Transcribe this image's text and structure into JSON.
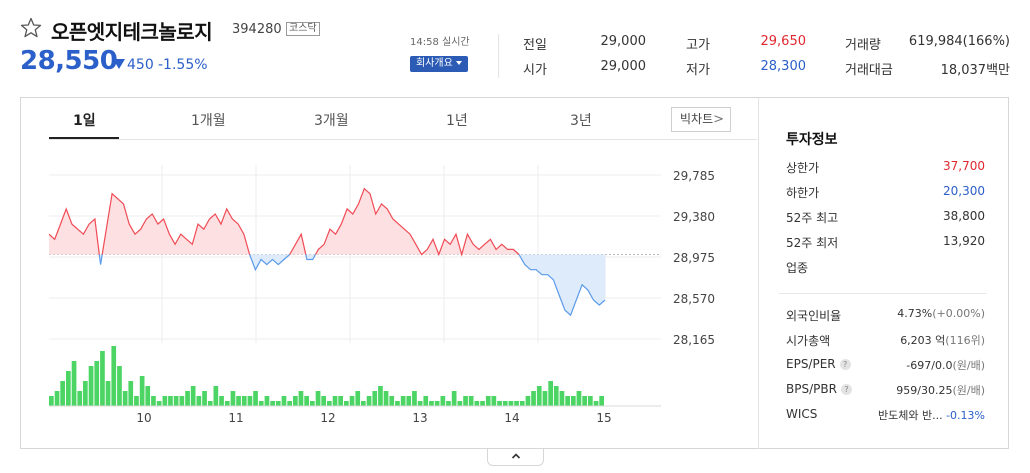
{
  "stock": {
    "name": "오픈엣지테크놀로지",
    "code": "394280",
    "market": "코스닥",
    "price": "28,550",
    "change": "450",
    "change_pct": "-1.55%",
    "time": "14:58 실시간",
    "company_button": "회사개요"
  },
  "quote": [
    {
      "label": "전일",
      "value": "29,000"
    },
    {
      "label": "고가",
      "value": "29,650",
      "color": "#e0272e"
    },
    {
      "label": "거래량",
      "value": "619,984(166%)"
    },
    {
      "label": "시가",
      "value": "29,000"
    },
    {
      "label": "저가",
      "value": "28,300",
      "color": "#2b5fc9"
    },
    {
      "label": "거래대금",
      "value": "18,037백만"
    }
  ],
  "tabs": [
    "1일",
    "1개월",
    "3개월",
    "1년",
    "3년"
  ],
  "active_tab": "1일",
  "bigchart_label": "빅차트",
  "invest": {
    "title": "투자정보",
    "rows": [
      {
        "label": "상한가",
        "value": "37,700",
        "color": "#e0272e"
      },
      {
        "label": "하한가",
        "value": "20,300",
        "color": "#2b5fc9"
      },
      {
        "label": "52주 최고",
        "value": "38,800"
      },
      {
        "label": "52주 최저",
        "value": "13,920"
      },
      {
        "label": "업종",
        "value": ""
      }
    ],
    "rows2": [
      {
        "label": "외국인비율",
        "value": "4.73%",
        "sub": "(+0.00%)"
      },
      {
        "label": "시가총액",
        "value": "6,203 억",
        "sub": "(116위)"
      },
      {
        "label": "EPS/PER",
        "value": "-697/0.0",
        "sub": "(원/배)",
        "help": "?"
      },
      {
        "label": "BPS/PBR",
        "value": "959/30.25",
        "sub": "(원/배)",
        "help": "?"
      },
      {
        "label": "WICS",
        "value": "반도체와 반...",
        "sub": "-0.13%"
      }
    ]
  },
  "chart_data": {
    "type": "line",
    "ylabels": [
      "29,785",
      "29,380",
      "28,975",
      "28,570",
      "28,165"
    ],
    "yticks": [
      29785,
      29380,
      28975,
      28570,
      28165
    ],
    "baseline": 29000,
    "x_tick_labels": [
      "10",
      "11",
      "12",
      "13",
      "14",
      "15"
    ],
    "x_tick_pos": [
      0.5,
      1.5,
      2.5,
      3.5,
      4.5,
      5.5
    ],
    "colors": {
      "up": "#f04b55",
      "up_fill": "#fde0e2",
      "down": "#5b9bea",
      "down_fill": "#ddebfb",
      "volume": "#4cd464"
    },
    "price": [
      29200,
      29150,
      29300,
      29450,
      29300,
      29250,
      29200,
      29300,
      29350,
      28900,
      29250,
      29600,
      29550,
      29500,
      29300,
      29200,
      29250,
      29350,
      29400,
      29300,
      29350,
      29200,
      29100,
      29200,
      29150,
      29100,
      29300,
      29250,
      29350,
      29400,
      29300,
      29450,
      29350,
      29300,
      29200,
      29000,
      28850,
      28950,
      28900,
      28950,
      28900,
      28950,
      29000,
      29100,
      29200,
      28950,
      28950,
      29050,
      29100,
      29250,
      29200,
      29300,
      29450,
      29400,
      29500,
      29650,
      29600,
      29400,
      29500,
      29450,
      29350,
      29300,
      29250,
      29200,
      29100,
      29000,
      29050,
      29150,
      29000,
      29150,
      29100,
      29200,
      29000,
      29200,
      29100,
      29050,
      29100,
      29150,
      29050,
      29100,
      29050,
      29050,
      29000,
      28900,
      28850,
      28850,
      28800,
      28800,
      28750,
      28600,
      28450,
      28400,
      28550,
      28700,
      28650,
      28550,
      28500,
      28550
    ],
    "volume": [
      2,
      3,
      5,
      7,
      9,
      3,
      5,
      8,
      9,
      11,
      5,
      12,
      8,
      3,
      5,
      2,
      6,
      4,
      2,
      1,
      2,
      2,
      2,
      2,
      3,
      4,
      2,
      3,
      1,
      4,
      2,
      1,
      3,
      2,
      2,
      2,
      3,
      1,
      2,
      1,
      1,
      2,
      1,
      2,
      3,
      2,
      1,
      3,
      2,
      1,
      2,
      2,
      1,
      2,
      3,
      1,
      2,
      3,
      4,
      3,
      2,
      1,
      2,
      2,
      3,
      1,
      2,
      1,
      1,
      2,
      1,
      3,
      1,
      2,
      2,
      1,
      1,
      2,
      2,
      1,
      1,
      1,
      1,
      1,
      2,
      3,
      4,
      3,
      5,
      4,
      3,
      2,
      2,
      3,
      2,
      2,
      1,
      2
    ]
  }
}
